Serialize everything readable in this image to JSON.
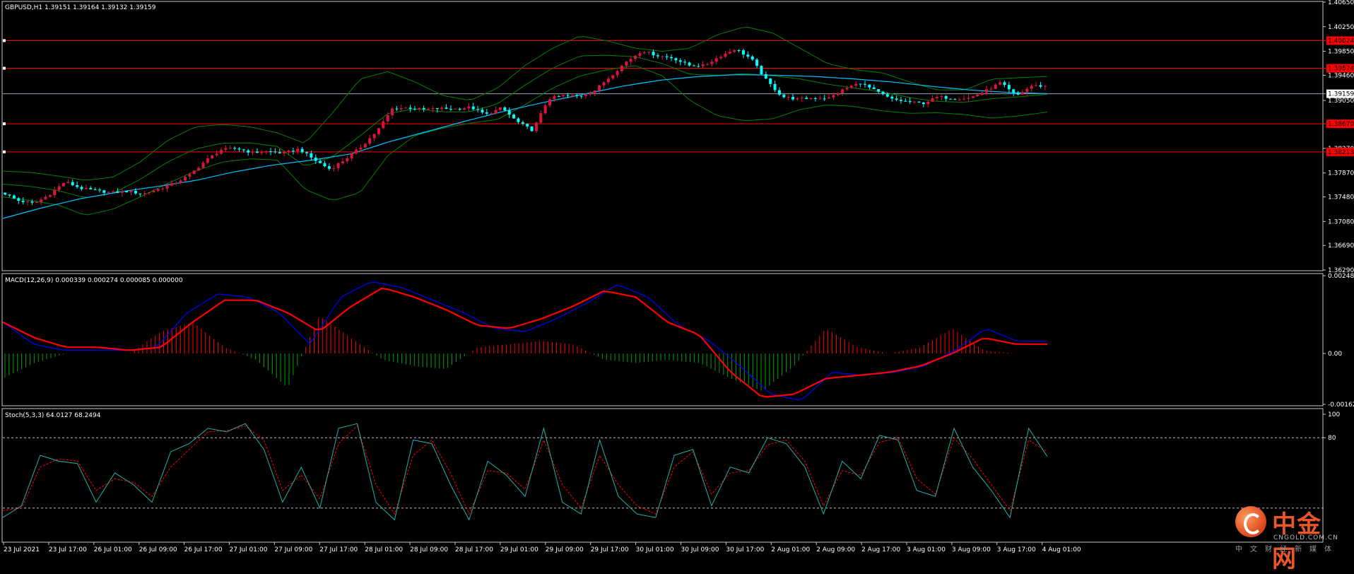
{
  "colors": {
    "bg": "#000000",
    "frame": "#c8c8c8",
    "bull": "#dc143c",
    "bear": "#00ffff",
    "bands": "#008000",
    "ma": "#00bfff",
    "level_lines": "#ff0000",
    "macd_line": "#0000ff",
    "signal_line": "#ff0000",
    "hist_pos": "#ff0000",
    "hist_neg": "#00a000",
    "stoch_k": "#20b2aa",
    "stoch_d": "#ff0000"
  },
  "header": {
    "main": "GBPUSD,H1  1.39151 1.39164 1.39132 1.39159",
    "macd": "MACD(12,26,9) 0.000339 0.000274 0.000085 0.000000",
    "stoch": "Stoch(5,3,3) 64.0127 68.2494"
  },
  "chart_data": [
    {
      "type": "candlestick",
      "symbol": "GBPUSD",
      "timeframe": "H1",
      "ohlc_last": [
        1.39151,
        1.39164,
        1.39132,
        1.39159
      ],
      "ylim": [
        1.3629,
        1.4065
      ],
      "y_ticks": [
        "1.40650",
        "1.40250",
        "1.39850",
        "1.39460",
        "1.39050",
        "1.38670",
        "1.38270",
        "1.37870",
        "1.37480",
        "1.37080",
        "1.36690",
        "1.36290"
      ],
      "current_price": "1.39159",
      "levels": [
        {
          "price": 1.40024,
          "label": "1.40024"
        },
        {
          "price": 1.39574,
          "label": "1.39574"
        },
        {
          "price": 1.3867,
          "label": "1.38670"
        },
        {
          "price": 1.38213,
          "label": "1.38213"
        }
      ],
      "x_labels": [
        "23 Jul 2021",
        "23 Jul 17:00",
        "26 Jul 01:00",
        "26 Jul 09:00",
        "26 Jul 17:00",
        "27 Jul 01:00",
        "27 Jul 09:00",
        "27 Jul 17:00",
        "28 Jul 01:00",
        "28 Jul 09:00",
        "28 Jul 17:00",
        "29 Jul 01:00",
        "29 Jul 09:00",
        "29 Jul 17:00",
        "30 Jul 01:00",
        "30 Jul 09:00",
        "30 Jul 17:00",
        "2 Aug 01:00",
        "2 Aug 09:00",
        "2 Aug 17:00",
        "3 Aug 01:00",
        "3 Aug 09:00",
        "3 Aug 17:00",
        "4 Aug 01:00"
      ],
      "close_path": [
        1.3755,
        1.3742,
        1.3737,
        1.3752,
        1.3773,
        1.3762,
        1.3758,
        1.3755,
        1.3757,
        1.3753,
        1.3761,
        1.377,
        1.3784,
        1.3807,
        1.3825,
        1.3827,
        1.382,
        1.3822,
        1.3819,
        1.3826,
        1.3808,
        1.3793,
        1.381,
        1.383,
        1.3855,
        1.3892,
        1.3893,
        1.389,
        1.3892,
        1.3891,
        1.3894,
        1.3882,
        1.3893,
        1.387,
        1.3856,
        1.3908,
        1.3913,
        1.3912,
        1.3922,
        1.3945,
        1.3968,
        1.3986,
        1.3978,
        1.3974,
        1.3962,
        1.3962,
        1.3977,
        1.3989,
        1.3973,
        1.3937,
        1.3911,
        1.3907,
        1.3909,
        1.3909,
        1.3924,
        1.3934,
        1.392,
        1.3907,
        1.3903,
        1.39,
        1.3911,
        1.3908,
        1.3909,
        1.392,
        1.3934,
        1.3912,
        1.3929,
        1.3928
      ],
      "bb_upper": [
        1.379,
        1.3788,
        1.3782,
        1.3775,
        1.378,
        1.3805,
        1.384,
        1.3862,
        1.3866,
        1.3862,
        1.3852,
        1.3835,
        1.3885,
        1.394,
        1.3952,
        1.3935,
        1.3913,
        1.3905,
        1.3925,
        1.3962,
        1.399,
        1.401,
        1.4002,
        1.399,
        1.3985,
        1.399,
        1.4012,
        1.4025,
        1.4015,
        1.399,
        1.3965,
        1.3955,
        1.395,
        1.3935,
        1.3922,
        1.3922,
        1.394,
        1.3942,
        1.3944
      ],
      "bb_lower": [
        1.3748,
        1.3742,
        1.3735,
        1.3718,
        1.3728,
        1.3748,
        1.377,
        1.379,
        1.3805,
        1.381,
        1.3808,
        1.376,
        1.3742,
        1.3755,
        1.3815,
        1.3848,
        1.386,
        1.3868,
        1.3874,
        1.3898,
        1.3925,
        1.3945,
        1.3955,
        1.3962,
        1.3945,
        1.3905,
        1.388,
        1.3872,
        1.3875,
        1.389,
        1.3898,
        1.3895,
        1.3888,
        1.3884,
        1.3885,
        1.3882,
        1.3876,
        1.388,
        1.3886
      ],
      "ma": [
        1.3713,
        1.373,
        1.3745,
        1.3756,
        1.3765,
        1.3775,
        1.3789,
        1.38,
        1.3808,
        1.3818,
        1.3838,
        1.3855,
        1.3872,
        1.3888,
        1.3902,
        1.3915,
        1.3928,
        1.3938,
        1.3944,
        1.3947,
        1.3946,
        1.3944,
        1.394,
        1.3935,
        1.3928,
        1.3922,
        1.3918,
        1.3916
      ]
    },
    {
      "type": "macd",
      "title": "MACD(12,26,9)",
      "values": [
        0.000339,
        0.000274,
        8.5e-05,
        0.0
      ],
      "ylim": [
        -0.001623,
        0.002483
      ],
      "y_ticks": [
        "0.002483",
        "0.00",
        "-0.001623"
      ],
      "macd": [
        0.001,
        0.0003,
        0.0001,
        0.0001,
        0.0001,
        0.0002,
        0.0013,
        0.0019,
        0.0018,
        0.0013,
        0.0003,
        0.0018,
        0.0023,
        0.0021,
        0.0017,
        0.0013,
        0.0008,
        0.0007,
        0.0011,
        0.0016,
        0.0022,
        0.0018,
        0.0009,
        0.0004,
        -0.0004,
        -0.0013,
        -0.0015,
        -0.0006,
        -0.0007,
        -0.0006,
        -0.0004,
        0.0001,
        0.0008,
        0.0004,
        0.0004
      ],
      "signal": [
        0.001,
        0.0005,
        0.0002,
        0.0002,
        0.0001,
        0.0002,
        0.001,
        0.0017,
        0.0017,
        0.0013,
        0.0007,
        0.0015,
        0.0021,
        0.0018,
        0.0014,
        0.0009,
        0.0008,
        0.0011,
        0.0015,
        0.002,
        0.0018,
        0.001,
        0.0006,
        -0.0006,
        -0.0014,
        -0.0013,
        -0.0008,
        -0.0007,
        -0.0006,
        -0.0004,
        0.0,
        0.0005,
        0.0003,
        0.0003
      ],
      "histogram": [
        -0.0008,
        -0.0003,
        0.0,
        0.0,
        0.0,
        0.0007,
        0.001,
        0.0002,
        -0.0002,
        -0.0011,
        0.0012,
        0.0005,
        -0.0002,
        -0.0004,
        -0.0005,
        0.0002,
        0.0003,
        0.0004,
        0.0003,
        -0.0002,
        -0.0003,
        -0.0002,
        -0.0003,
        -0.0008,
        -0.0012,
        -0.0004,
        0.0008,
        0.0002,
        0.0,
        0.0002,
        0.0008,
        0.0001,
        0.0,
        0.0
      ]
    },
    {
      "type": "stochastic",
      "title": "Stoch(5,3,3)",
      "values": [
        64.0127,
        68.2494
      ],
      "ylim": [
        0,
        100
      ],
      "y_ticks": [
        "100",
        "80"
      ],
      "levels": [
        80,
        20
      ],
      "k": [
        12,
        22,
        65,
        60,
        58,
        25,
        50,
        40,
        25,
        68,
        75,
        88,
        85,
        92,
        70,
        25,
        55,
        20,
        88,
        92,
        25,
        10,
        78,
        75,
        40,
        10,
        60,
        48,
        30,
        88,
        25,
        15,
        78,
        30,
        15,
        12,
        65,
        70,
        22,
        55,
        50,
        80,
        75,
        55,
        15,
        60,
        45,
        82,
        78,
        35,
        30,
        88,
        55,
        35,
        12,
        88,
        64
      ],
      "d": [
        18,
        20,
        55,
        62,
        60,
        35,
        45,
        42,
        30,
        55,
        70,
        85,
        86,
        90,
        78,
        35,
        48,
        28,
        75,
        90,
        40,
        15,
        65,
        78,
        50,
        15,
        52,
        50,
        36,
        78,
        40,
        20,
        65,
        40,
        22,
        15,
        55,
        68,
        32,
        50,
        52,
        74,
        78,
        60,
        22,
        52,
        48,
        76,
        80,
        45,
        32,
        80,
        62,
        40,
        18,
        78,
        68
      ]
    }
  ],
  "watermark": {
    "brand": "中金网",
    "url": "CNGOLD.COM.CN",
    "tagline": "中文财经新媒体"
  }
}
